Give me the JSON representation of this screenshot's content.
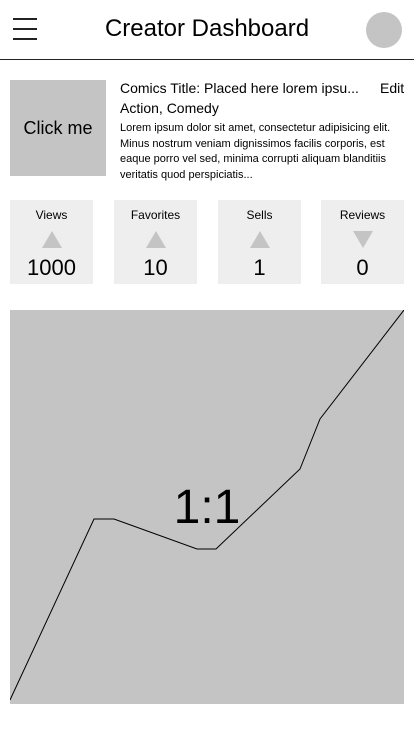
{
  "header": {
    "title": "Creator Dashboard",
    "menu_icon": "hamburger-menu-icon",
    "avatar_icon": "user-avatar"
  },
  "comic": {
    "cover_button_label": "Click me",
    "title": "Comics Title: Placed here lorem ipsu...",
    "edit_label": "Edit",
    "genres": "Action, Comedy",
    "description": "Lorem ipsum dolor sit amet, consectetur adipisicing elit. Minus nostrum veniam dignissimos facilis corporis, est eaque porro vel sed, minima corrupti aliquam blanditiis veritatis quod perspiciatis..."
  },
  "stats": [
    {
      "label": "Views",
      "value": "1000",
      "trend": "up"
    },
    {
      "label": "Favorites",
      "value": "10",
      "trend": "up"
    },
    {
      "label": "Sells",
      "value": "1",
      "trend": "up"
    },
    {
      "label": "Reviews",
      "value": "0",
      "trend": "down"
    }
  ],
  "chart": {
    "label": "1:1",
    "colors": {
      "background": "#c4c4c4",
      "line": "#000000"
    }
  },
  "colors": {
    "placeholder": "#c4c4c4",
    "stat_background": "#eeeeee",
    "trend_icon": "#c4c4c4"
  }
}
